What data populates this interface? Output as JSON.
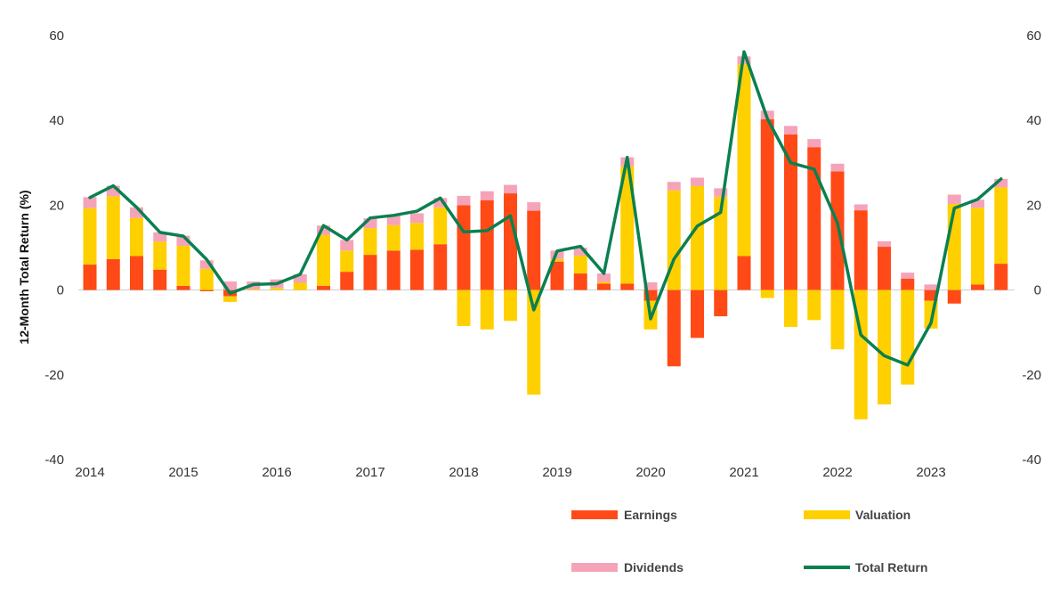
{
  "chart_data": {
    "type": "bar",
    "stacked": true,
    "ylabel": "12-Month Total Return (%)",
    "ylim": [
      -40,
      60
    ],
    "y2lim": [
      -40,
      60
    ],
    "yticks": [
      "60",
      "40",
      "20",
      "0",
      "-20",
      "-40"
    ],
    "y2ticks": [
      "60",
      "40",
      "20",
      "0",
      "-20",
      "-40"
    ],
    "ytick_values": [
      60,
      40,
      20,
      0,
      -20,
      -40
    ],
    "x_tick_labels": [
      "2014",
      "2015",
      "2016",
      "2017",
      "2018",
      "2019",
      "2020",
      "2021",
      "2022",
      "2023"
    ],
    "periods_per_year": 4,
    "grid": false,
    "legend_placement": "bottom-right",
    "colors": {
      "earnings": "#FF4A17",
      "valuation": "#FFD000",
      "dividends": "#F5A3B8",
      "total_return": "#0A8050",
      "zero_line": "#cccccc"
    },
    "series": [
      {
        "name": "Earnings",
        "key": "earnings",
        "kind": "bar",
        "values": [
          6,
          7.3,
          8,
          4.8,
          1,
          -0.3,
          -1.5,
          0,
          0,
          0,
          1,
          4.3,
          8.3,
          9.3,
          9.5,
          10.8,
          20,
          21.2,
          22.8,
          18.7,
          6.7,
          3.9,
          1.5,
          1.5,
          -2.5,
          -18,
          -11.3,
          -6.2,
          8,
          40.3,
          36.7,
          33.7,
          28,
          18.8,
          10.2,
          2.7,
          -2.5,
          -3.2,
          1.3,
          6.2
        ]
      },
      {
        "name": "Valuation",
        "key": "valuation",
        "kind": "bar",
        "values": [
          13.3,
          14.8,
          9,
          6.6,
          9.4,
          5,
          -1.3,
          0.2,
          0.5,
          1.7,
          12,
          5,
          6.3,
          6,
          6.3,
          8.7,
          -8.5,
          -9.3,
          -7.3,
          -24.7,
          0.6,
          4.2,
          0.4,
          27.7,
          -6.8,
          23.5,
          24.5,
          22,
          45.2,
          -1.9,
          -8.7,
          -7.1,
          -14,
          -30.5,
          -27,
          -22.3,
          -6.6,
          20.3,
          18.1,
          18
        ]
      },
      {
        "name": "Dividends",
        "key": "dividends",
        "kind": "bar",
        "values": [
          2.6,
          2.5,
          2.5,
          2.2,
          2.4,
          2,
          2,
          1.8,
          2,
          2,
          2.2,
          2.5,
          2.3,
          2.3,
          2.3,
          2.2,
          2.2,
          2.1,
          2,
          2,
          2,
          1.9,
          2,
          2.1,
          1.8,
          2,
          2,
          2,
          1.9,
          2,
          2,
          1.9,
          1.8,
          1.4,
          1.3,
          1.4,
          1.3,
          2.2,
          1.9,
          2
        ]
      },
      {
        "name": "Total Return",
        "key": "total_return",
        "kind": "line",
        "values": [
          21.8,
          24.6,
          19.5,
          13.6,
          12.7,
          7.2,
          -0.8,
          1.3,
          1.5,
          3.7,
          15.2,
          11.8,
          17,
          17.6,
          18.6,
          21.7,
          13.7,
          14,
          17.5,
          -4.7,
          9.2,
          10.3,
          3.9,
          31.3,
          -6.8,
          7.3,
          15.1,
          18.3,
          56.2,
          40.4,
          30,
          28.5,
          15.8,
          -10.6,
          -15.5,
          -17.7,
          -7.8,
          19.3,
          21.4,
          26.2
        ]
      }
    ]
  },
  "legend": {
    "earnings": "Earnings",
    "valuation": "Valuation",
    "dividends": "Dividends",
    "total_return": "Total Return"
  }
}
